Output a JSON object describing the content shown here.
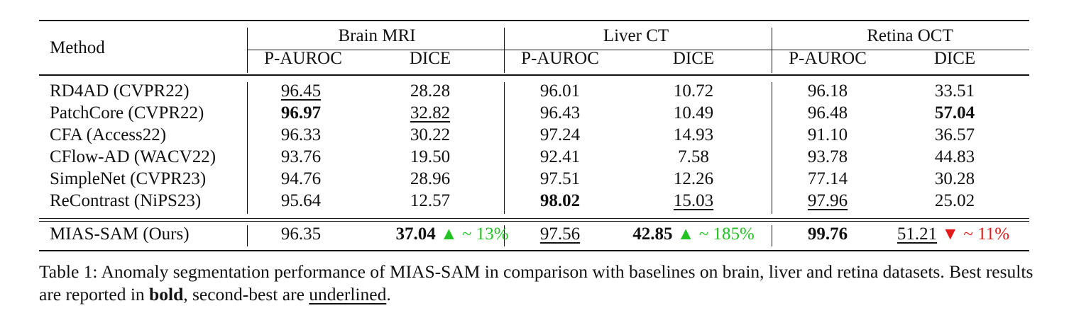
{
  "table": {
    "method_header": "Method",
    "groups": [
      "Brain MRI",
      "Liver CT",
      "Retina OCT"
    ],
    "subheaders": [
      "P-AUROC",
      "DICE",
      "P-AUROC",
      "DICE",
      "P-AUROC",
      "DICE"
    ],
    "rows": [
      {
        "method": "RD4AD (CVPR22)",
        "values": [
          "96.45",
          "28.28",
          "96.01",
          "10.72",
          "96.18",
          "33.51"
        ]
      },
      {
        "method": "PatchCore (CVPR22)",
        "values": [
          "96.97",
          "32.82",
          "96.43",
          "10.49",
          "96.48",
          "57.04"
        ]
      },
      {
        "method": "CFA (Access22)",
        "values": [
          "96.33",
          "30.22",
          "97.24",
          "14.93",
          "91.10",
          "36.57"
        ]
      },
      {
        "method": "CFlow-AD (WACV22)",
        "values": [
          "93.76",
          "19.50",
          "92.41",
          "7.58",
          "93.78",
          "44.83"
        ]
      },
      {
        "method": "SimpleNet (CVPR23)",
        "values": [
          "94.76",
          "28.96",
          "97.51",
          "12.26",
          "77.14",
          "30.28"
        ]
      },
      {
        "method": "ReContrast (NiPS23)",
        "values": [
          "95.64",
          "12.57",
          "98.02",
          "15.03",
          "97.96",
          "25.02"
        ]
      }
    ],
    "ours": {
      "method": "MIAS-SAM (Ours)",
      "values": [
        "96.35",
        "37.04",
        "97.56",
        "42.85",
        "99.76",
        "51.21"
      ],
      "deltas": [
        "▲ ~ 13%",
        "▲ ~ 185%",
        "▼ ~ 11%"
      ]
    }
  },
  "caption": {
    "part1": "Table 1: Anomaly segmentation performance of MIAS-SAM in comparison with baselines on brain, liver and retina datasets. Best results are reported in ",
    "bold_word": "bold",
    "part2": ", second-best are ",
    "underlined_word": "underlined",
    "part3": "."
  },
  "colors": {
    "increase": "#22c322",
    "decrease": "#e01b1b"
  }
}
